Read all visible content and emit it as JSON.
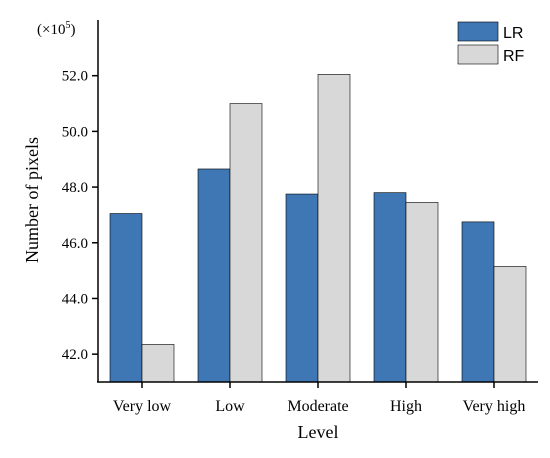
{
  "chart_data": {
    "type": "bar",
    "multiplier_label": "(×10",
    "multiplier_exp": "5",
    "multiplier_close": ")",
    "xlabel": "Level",
    "ylabel": "Number of pixels",
    "categories": [
      "Very low",
      "Low",
      "Moderate",
      "High",
      "Very high"
    ],
    "series": [
      {
        "name": "LR",
        "color": "#3f77b4",
        "values": [
          47.05,
          48.65,
          47.75,
          47.8,
          46.75
        ]
      },
      {
        "name": "RF",
        "color": "#d8d8d8",
        "values": [
          42.35,
          51.0,
          52.05,
          47.45,
          45.15
        ]
      }
    ],
    "ylim": [
      41.0,
      54.0
    ],
    "yticks": [
      "42.0",
      "44.0",
      "46.0",
      "48.0",
      "50.0",
      "52.0"
    ],
    "ytick_values": [
      42.0,
      44.0,
      46.0,
      48.0,
      50.0,
      52.0
    ],
    "legend_position": "top-right",
    "grid": false
  }
}
